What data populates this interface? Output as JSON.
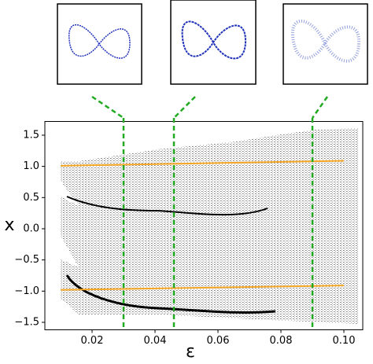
{
  "chart_data": {
    "type": "line",
    "x_label": "ε",
    "y_label": "x",
    "xlim": [
      0.005,
      0.106
    ],
    "ylim": [
      -1.62,
      1.72
    ],
    "xticks": [
      0.02,
      0.04,
      0.06,
      0.08,
      {
        "value": 0.1,
        "label": "0.10"
      }
    ],
    "yticks": [
      {
        "value": -1.5,
        "label": "−1.5"
      },
      {
        "value": -1.0,
        "label": "−1.0"
      },
      {
        "value": -0.5,
        "label": "−0.5"
      },
      {
        "value": 0,
        "label": "0.0"
      },
      {
        "value": 0.5,
        "label": "0.5"
      },
      {
        "value": 1.0,
        "label": "1.0"
      },
      1.5
    ],
    "series": [
      {
        "color": "#f5a623",
        "x": [
          0.01,
          0.1
        ],
        "values": [
          1.01,
          1.09
        ]
      },
      {
        "color": "#f5a623",
        "x": [
          0.01,
          0.1
        ],
        "values": [
          -0.98,
          -0.91
        ]
      }
    ],
    "markers": {
      "color": "#22aa22",
      "x": [
        0.03,
        0.046,
        0.09
      ]
    }
  }
}
